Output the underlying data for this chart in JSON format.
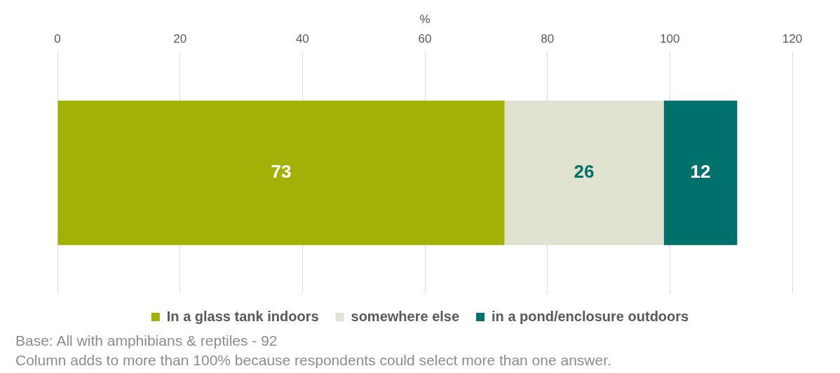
{
  "chart_data": {
    "type": "bar",
    "orientation": "horizontal",
    "stacked": true,
    "xlabel": "%",
    "categories": [
      null
    ],
    "series": [
      {
        "name": "In a glass tank indoors",
        "color": "#a3b005",
        "values": [
          73
        ]
      },
      {
        "name": "somewhere else",
        "color": "#e0e3cf",
        "values": [
          26
        ]
      },
      {
        "name": "in a pond/enclosure outdoors",
        "color": "#00706a",
        "values": [
          12
        ]
      }
    ],
    "xlim": [
      0,
      120
    ],
    "xticks": [
      0,
      20,
      40,
      60,
      80,
      100,
      120
    ],
    "grid": "x",
    "legend": "bottom",
    "data_labels": true,
    "annotations": [
      "Base: All with amphibians & reptiles - 92",
      "Column adds to more than 100% because respondents could select more than one answer."
    ]
  }
}
